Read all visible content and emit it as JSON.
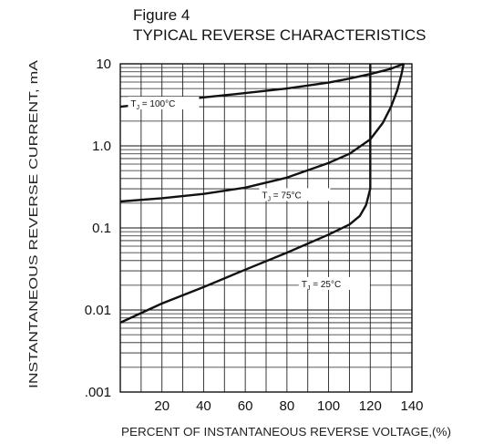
{
  "figure": {
    "number": "Figure 4",
    "title": "TYPICAL REVERSE CHARACTERISTICS"
  },
  "chart_data": {
    "type": "line",
    "title": "TYPICAL REVERSE CHARACTERISTICS",
    "xlabel": "PERCENT OF INSTANTANEOUS REVERSE VOLTAGE,(%)",
    "ylabel": "INSTANTANEOUS REVERSE CURRENT, mA",
    "xlim": [
      0,
      140
    ],
    "ylim": [
      0.001,
      10
    ],
    "yscale": "log",
    "grid": true,
    "xticks": [
      20,
      40,
      60,
      80,
      100,
      120,
      140
    ],
    "xtick_labels": [
      "20",
      "40",
      "60",
      "80",
      "100",
      "120",
      "140"
    ],
    "yticks": [
      10,
      1.0,
      0.1,
      0.01,
      0.001
    ],
    "ytick_labels": [
      "10",
      "1.0",
      "0.1",
      "0.01",
      ".001"
    ],
    "series": [
      {
        "label": "TJ = 100°C",
        "label_parts": {
          "t": "T",
          "sub": "J",
          "rest": "= 100°C"
        },
        "x": [
          0,
          20,
          40,
          60,
          80,
          100,
          110,
          120,
          130,
          136
        ],
        "y": [
          3.0,
          3.4,
          3.9,
          4.4,
          5.0,
          5.9,
          6.6,
          7.5,
          8.7,
          10
        ]
      },
      {
        "label": "TJ = 75°C",
        "label_parts": {
          "t": "T",
          "sub": "J",
          "rest": "= 75°C"
        },
        "x": [
          0,
          20,
          40,
          60,
          80,
          100,
          110,
          120,
          126,
          130,
          133,
          135,
          136
        ],
        "y": [
          0.21,
          0.23,
          0.26,
          0.31,
          0.41,
          0.62,
          0.8,
          1.2,
          1.9,
          3.0,
          4.8,
          7.5,
          10
        ]
      },
      {
        "label": "TJ = 25°C",
        "label_parts": {
          "t": "T",
          "sub": "J",
          "rest": "= 25°C"
        },
        "x": [
          0,
          20,
          40,
          60,
          80,
          100,
          110,
          115,
          118,
          120,
          120,
          120
        ],
        "y": [
          0.007,
          0.012,
          0.019,
          0.031,
          0.05,
          0.083,
          0.11,
          0.14,
          0.19,
          0.3,
          1.0,
          10
        ]
      }
    ]
  }
}
